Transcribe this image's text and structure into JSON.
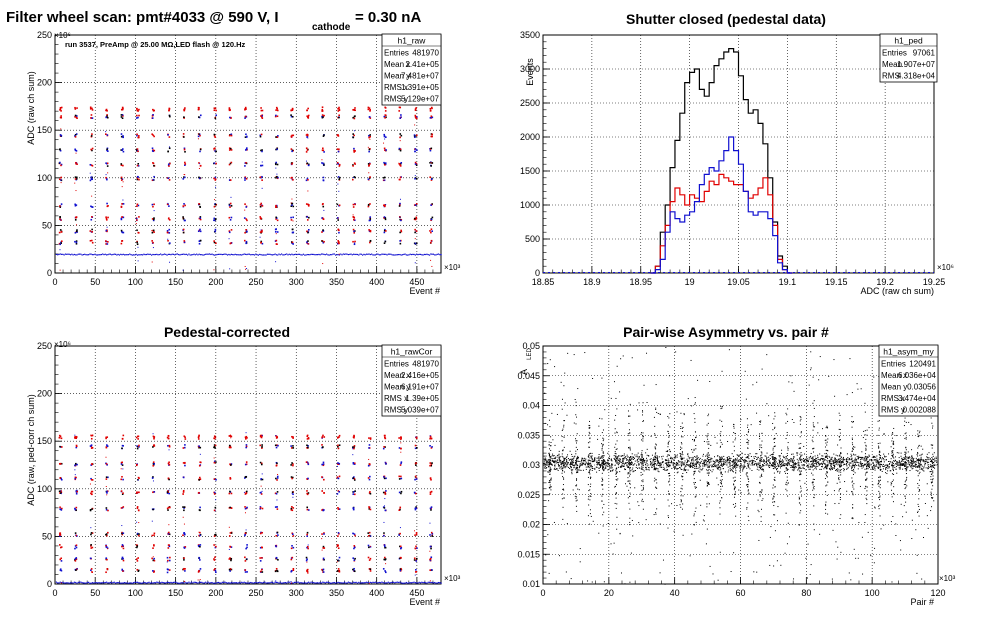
{
  "colors": {
    "black": "#000000",
    "red": "#e00000",
    "blue": "#1010d0",
    "grid": "#000000"
  },
  "chart_data": [
    {
      "id": "raw",
      "type": "scatter",
      "title": "Filter wheel scan: pmt#4033 @   590 V, I",
      "title_sub": "cathode",
      "title_tail": "= 0.30 nA",
      "annotation": "run 3537, PreAmp @ 25.00 MΩ,LED flash @  120.Hz",
      "xlabel": "Event #",
      "ylabel": "ADC (raw ch sum)",
      "x_exp": "×10³",
      "y_exp": "×10⁶",
      "xlim": [
        0,
        480
      ],
      "ylim": [
        0,
        250
      ],
      "xticks": [
        "0",
        "50",
        "100",
        "150",
        "200",
        "250",
        "300",
        "350",
        "400",
        "450"
      ],
      "yticks": [
        "0",
        "50",
        "100",
        "150",
        "200",
        "250"
      ],
      "bands": [
        {
          "y": 20,
          "color": "blue",
          "kind": "line"
        },
        {
          "y": 33,
          "color": "mixed",
          "kind": "cluster"
        },
        {
          "y": 45,
          "color": "mixed",
          "kind": "cluster"
        },
        {
          "y": 58,
          "color": "mixed",
          "kind": "cluster"
        },
        {
          "y": 72,
          "color": "mixed",
          "kind": "cluster"
        },
        {
          "y": 100,
          "color": "mixed",
          "kind": "cluster"
        },
        {
          "y": 115,
          "color": "mixed",
          "kind": "cluster"
        },
        {
          "y": 130,
          "color": "mixed",
          "kind": "cluster"
        },
        {
          "y": 145,
          "color": "mixed",
          "kind": "cluster"
        },
        {
          "y": 165,
          "color": "mixed",
          "kind": "cluster"
        },
        {
          "y": 173,
          "color": "red",
          "kind": "cluster"
        }
      ],
      "stats": {
        "name": "h1_raw",
        "rows": [
          [
            "Entries",
            "481970"
          ],
          [
            "Mean x",
            "2.41e+05"
          ],
          [
            "Mean y",
            "7.481e+07"
          ],
          [
            "RMS x",
            "1.391e+05"
          ],
          [
            "RMS y",
            "5.129e+07"
          ]
        ]
      }
    },
    {
      "id": "ped",
      "type": "line",
      "title": "Shutter closed (pedestal data)",
      "xlabel": "ADC (raw ch sum)",
      "ylabel": "Events",
      "x_exp": "×10⁶",
      "xlim": [
        18.85,
        19.25
      ],
      "ylim": [
        0,
        3500
      ],
      "xticks": [
        "18.85",
        "18.9",
        "18.95",
        "19",
        "19.05",
        "19.1",
        "19.15",
        "19.2",
        "19.25"
      ],
      "yticks": [
        "0",
        "500",
        "1000",
        "1500",
        "2000",
        "2500",
        "3000",
        "3500"
      ],
      "bin_start": 18.96,
      "bin_width": 0.005,
      "series": [
        {
          "color": "black",
          "values": [
            0,
            100,
            600,
            1000,
            1550,
            1950,
            2350,
            2800,
            2950,
            3000,
            2700,
            2600,
            2800,
            3050,
            3150,
            3250,
            3300,
            3250,
            2900,
            2550,
            2350,
            2400,
            2200,
            1900,
            1400,
            750,
            250,
            100,
            0
          ]
        },
        {
          "color": "red",
          "values": [
            0,
            100,
            400,
            700,
            1050,
            1250,
            1150,
            1000,
            1150,
            1100,
            1050,
            1200,
            1350,
            1300,
            1450,
            1400,
            1350,
            1300,
            1300,
            1200,
            1100,
            1150,
            1250,
            1400,
            1150,
            700,
            200,
            50,
            0
          ]
        },
        {
          "color": "blue",
          "values": [
            0,
            50,
            200,
            600,
            900,
            800,
            750,
            850,
            900,
            1050,
            1300,
            1450,
            1550,
            1500,
            1650,
            1800,
            2000,
            1800,
            1600,
            1200,
            900,
            850,
            900,
            900,
            800,
            550,
            150,
            50,
            0
          ]
        }
      ],
      "stats": {
        "name": "h1_ped",
        "rows": [
          [
            "Entries",
            "97061"
          ],
          [
            "Mean",
            "1.907e+07"
          ],
          [
            "RMS",
            "4.318e+04"
          ]
        ]
      }
    },
    {
      "id": "rawCor",
      "type": "scatter",
      "title": "Pedestal-corrected",
      "xlabel": "Event #",
      "ylabel": "ADC (raw, ped-corr ch sum)",
      "x_exp": "×10³",
      "y_exp": "×10⁶",
      "xlim": [
        0,
        480
      ],
      "ylim": [
        0,
        250
      ],
      "xticks": [
        "0",
        "50",
        "100",
        "150",
        "200",
        "250",
        "300",
        "350",
        "400",
        "450"
      ],
      "yticks": [
        "0",
        "50",
        "100",
        "150",
        "200",
        "250"
      ],
      "bands": [
        {
          "y": 2,
          "color": "blue",
          "kind": "line"
        },
        {
          "y": 15,
          "color": "mixed",
          "kind": "cluster"
        },
        {
          "y": 27,
          "color": "mixed",
          "kind": "cluster"
        },
        {
          "y": 40,
          "color": "mixed",
          "kind": "cluster"
        },
        {
          "y": 53,
          "color": "mixed",
          "kind": "cluster"
        },
        {
          "y": 80,
          "color": "mixed",
          "kind": "cluster"
        },
        {
          "y": 97,
          "color": "mixed",
          "kind": "cluster"
        },
        {
          "y": 112,
          "color": "mixed",
          "kind": "cluster"
        },
        {
          "y": 127,
          "color": "mixed",
          "kind": "cluster"
        },
        {
          "y": 145,
          "color": "mixed",
          "kind": "cluster"
        },
        {
          "y": 155,
          "color": "red",
          "kind": "cluster"
        }
      ],
      "stats": {
        "name": "h1_rawCor",
        "rows": [
          [
            "Entries",
            "481970"
          ],
          [
            "Mean x",
            "2.416e+05"
          ],
          [
            "Mean y",
            "6.191e+07"
          ],
          [
            "RMS x",
            "1.39e+05"
          ],
          [
            "RMS y",
            "5.039e+07"
          ]
        ]
      }
    },
    {
      "id": "asym",
      "type": "scatter",
      "title": "Pair-wise Asymmetry vs. pair #",
      "xlabel": "Pair #",
      "ylabel": "A",
      "ylabel_sub": "LED",
      "x_exp": "×10³",
      "xlim": [
        0,
        120
      ],
      "ylim": [
        0.01,
        0.05
      ],
      "xticks": [
        "0",
        "20",
        "40",
        "60",
        "80",
        "100",
        "120"
      ],
      "yticks": [
        "0.01",
        "0.015",
        "0.02",
        "0.025",
        "0.03",
        "0.035",
        "0.04",
        "0.045",
        "0.05"
      ],
      "center": 0.0305,
      "spike_every": 4,
      "stats": {
        "name": "h1_asym_my",
        "rows": [
          [
            "Entries",
            "120491"
          ],
          [
            "Mean x",
            "6.036e+04"
          ],
          [
            "Mean y",
            "0.03056"
          ],
          [
            "RMS x",
            "3.474e+04"
          ],
          [
            "RMS y",
            "0.002088"
          ]
        ]
      }
    }
  ]
}
